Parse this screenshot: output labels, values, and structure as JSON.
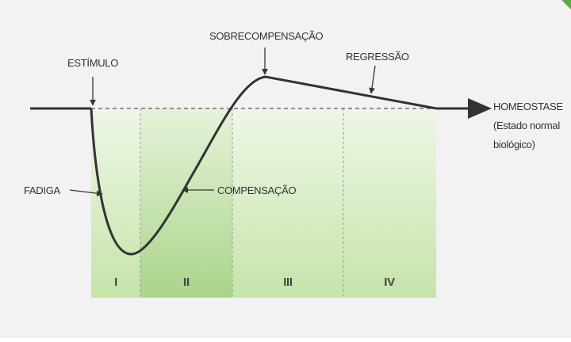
{
  "labels": {
    "stimulus": "ESTÍMULO",
    "overcompensation": "SOBRECOMPENSAÇÃO",
    "regression": "REGRESSÃO",
    "fatigue": "FADIGA",
    "compensation": "COMPENSAÇÃO",
    "homeostasis": [
      "HOMEOSTASE",
      "(Estado normal",
      "biológico)"
    ]
  },
  "phases": [
    "I",
    "II",
    "III",
    "IV"
  ]
}
